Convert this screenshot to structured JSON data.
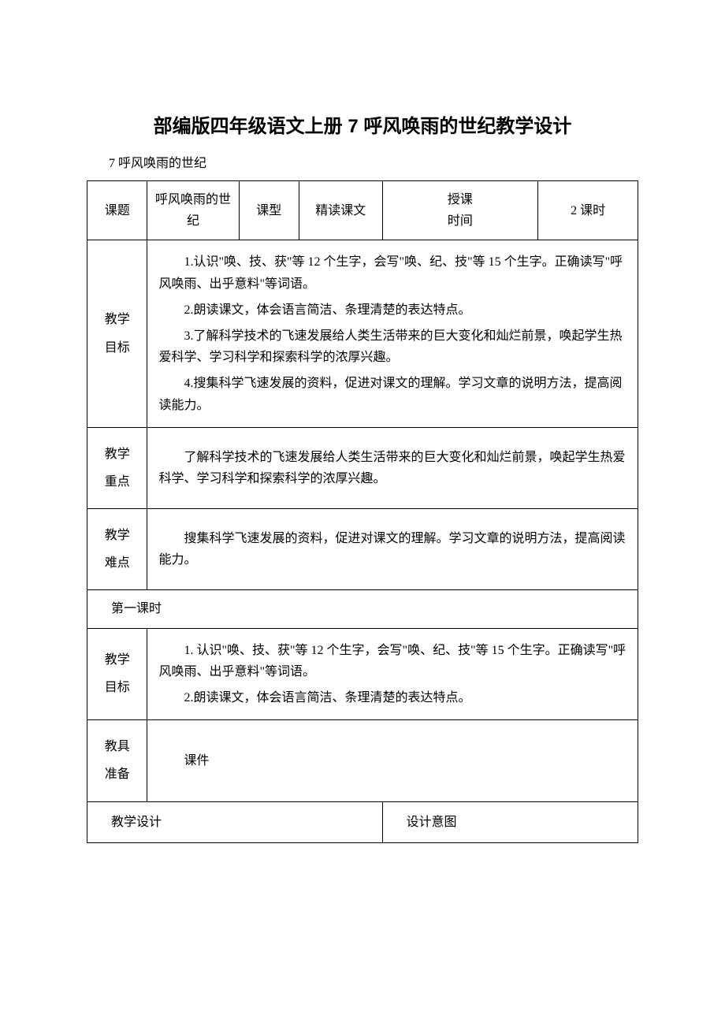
{
  "title": "部编版四年级语文上册 7 呼风唤雨的世纪教学设计",
  "subtitle": "7 呼风唤雨的世纪",
  "header": {
    "labels": {
      "l1": "课题",
      "l2": "课型",
      "l3": "授课\n时间"
    },
    "values": {
      "v1": "呼风唤雨的世纪",
      "v2": "精读课文",
      "v3": "2 课时"
    }
  },
  "rows": {
    "goals": {
      "label": "教学\n目标",
      "items": [
        "1.认识\"唤、技、获\"等 12 个生字，会写\"唤、纪、技\"等 15 个生字。正确读写\"呼风唤雨、出乎意料\"等词语。",
        "2.朗读课文，体会语言简洁、条理清楚的表达特点。",
        "3.了解科学技术的飞速发展给人类生活带来的巨大变化和灿烂前景，唤起学生热爱科学、学习科学和探索科学的浓厚兴趣。",
        "4.搜集科学飞速发展的资料，促进对课文的理解。学习文章的说明方法，提高阅读能力。"
      ]
    },
    "key": {
      "label": "教学\n重点",
      "text": "了解科学技术的飞速发展给人类生活带来的巨大变化和灿烂前景，唤起学生热爱科学、学习科学和探索科学的浓厚兴趣。"
    },
    "difficulty": {
      "label": "教学\n难点",
      "text": "搜集科学飞速发展的资料，促进对课文的理解。学习文章的说明方法，提高阅读能力。"
    },
    "section": "第一课时",
    "goals2": {
      "label": "教学\n目标",
      "items": [
        "1. 认识\"唤、技、获\"等 12 个生字，会写\"唤、纪、技\"等 15 个生字。正确读写\"呼风唤雨、出乎意料\"等词语。",
        "2.朗读课文，体会语言简洁、条理清楚的表达特点。"
      ]
    },
    "tools": {
      "label": "教具\n准备",
      "text": "课件"
    },
    "last": {
      "l": "教学设计",
      "r": "设计意图"
    }
  }
}
